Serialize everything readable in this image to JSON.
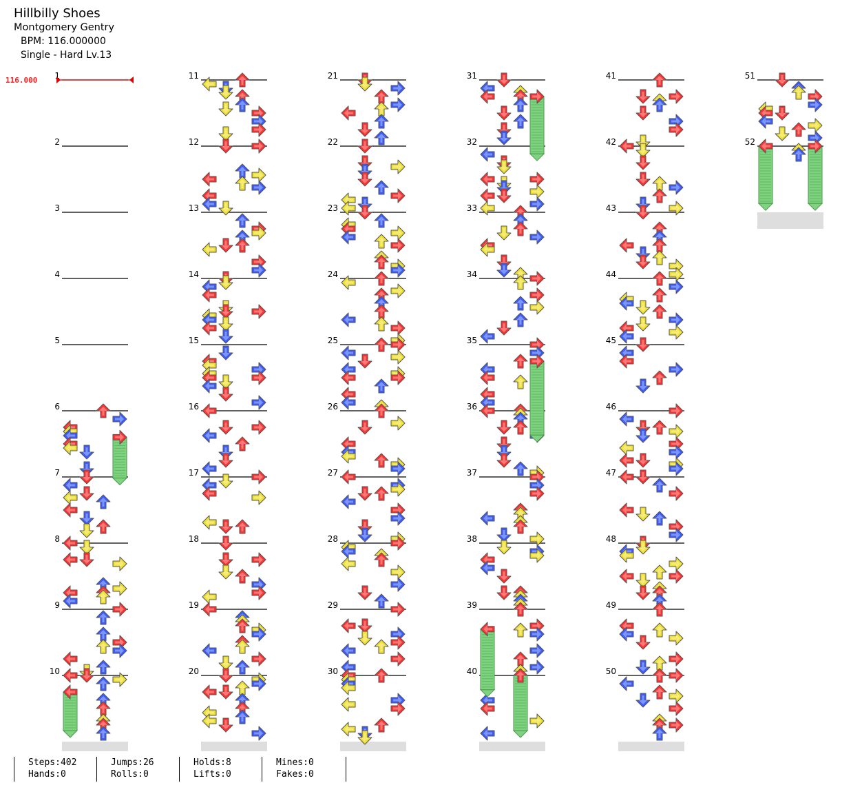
{
  "song": {
    "title": "Hillbilly Shoes",
    "artist": "Montgomery Gentry",
    "bpm_text": "BPM: 116.000000",
    "difficulty_text": "Single - Hard  Lv.13"
  },
  "chart_data": {
    "type": "table",
    "bpm_marker": "116.000",
    "measures": 52,
    "columns": 6,
    "measures_per_column": 10,
    "lanes": [
      "left",
      "down",
      "up",
      "right"
    ],
    "colors": {
      "quarter": "#ff3030",
      "eighth": "#3a5cff",
      "sixteenth": "#f0e030",
      "hold": "#7fd27f",
      "shade": "#dedede"
    }
  },
  "stats": [
    {
      "a": "Steps:402",
      "b": "Hands:0"
    },
    {
      "a": "Jumps:26",
      "b": "Rolls:0"
    },
    {
      "a": "Holds:8",
      "b": "Lifts:0"
    },
    {
      "a": "Mines:0",
      "b": "Fakes:0"
    }
  ]
}
